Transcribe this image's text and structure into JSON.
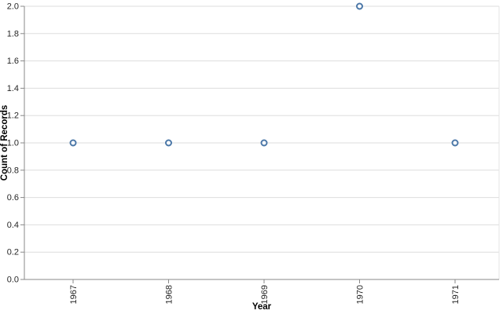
{
  "chart_data": {
    "type": "scatter",
    "title": "",
    "xlabel": "Year",
    "ylabel": "Count of Records",
    "categories": [
      "1967",
      "1968",
      "1969",
      "1970",
      "1971"
    ],
    "values": [
      1,
      1,
      1,
      2,
      1
    ],
    "ylim": [
      0,
      2
    ],
    "y_tick_labels": [
      "0.0",
      "0.2",
      "0.4",
      "0.6",
      "0.8",
      "1.0",
      "1.2",
      "1.4",
      "1.6",
      "1.8",
      "2.0"
    ],
    "grid": "horizontal",
    "legend": "none",
    "point_color": "#4c78a8",
    "point_fill": "#ffffff",
    "axis_color": "#888888",
    "grid_color": "#dddddd",
    "label_color": "#262626",
    "title_color": "#000000"
  }
}
